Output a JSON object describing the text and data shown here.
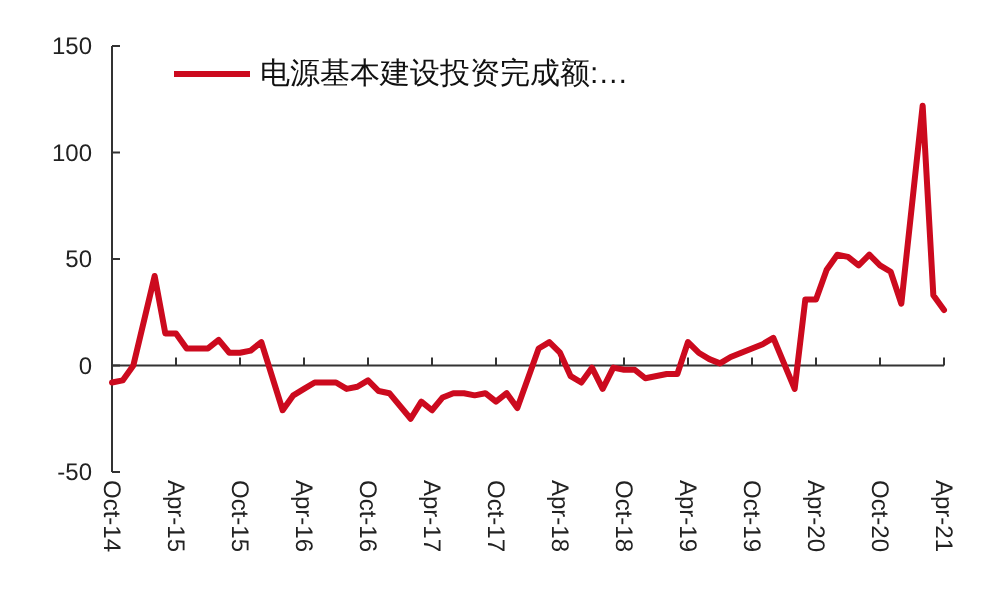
{
  "chart_data": {
    "type": "line",
    "x": [
      "2014-10",
      "2014-11",
      "2014-12",
      "2015-02",
      "2015-03",
      "2015-04",
      "2015-05",
      "2015-06",
      "2015-07",
      "2015-08",
      "2015-09",
      "2015-10",
      "2015-11",
      "2015-12",
      "2016-02",
      "2016-03",
      "2016-04",
      "2016-05",
      "2016-06",
      "2016-07",
      "2016-08",
      "2016-09",
      "2016-10",
      "2016-11",
      "2016-12",
      "2017-02",
      "2017-03",
      "2017-04",
      "2017-05",
      "2017-06",
      "2017-07",
      "2017-08",
      "2017-09",
      "2017-10",
      "2017-11",
      "2017-12",
      "2018-02",
      "2018-03",
      "2018-04",
      "2018-05",
      "2018-06",
      "2018-07",
      "2018-08",
      "2018-09",
      "2018-10",
      "2018-11",
      "2018-12",
      "2019-02",
      "2019-03",
      "2019-04",
      "2019-05",
      "2019-06",
      "2019-07",
      "2019-08",
      "2019-09",
      "2019-10",
      "2019-11",
      "2019-12",
      "2020-02",
      "2020-03",
      "2020-04",
      "2020-05",
      "2020-06",
      "2020-07",
      "2020-08",
      "2020-09",
      "2020-10",
      "2020-11",
      "2020-12",
      "2021-02",
      "2021-03",
      "2021-04"
    ],
    "series": [
      {
        "name": "电源基本建设投资完成额:…",
        "color": "#cc0a1e",
        "values": [
          -8,
          -7,
          0,
          42,
          15,
          15,
          8,
          8,
          8,
          12,
          6,
          6,
          7,
          11,
          -21,
          -14,
          -11,
          -8,
          -8,
          -8,
          -11,
          -10,
          -7,
          -12,
          -13,
          -25,
          -17,
          -21,
          -15,
          -13,
          -13,
          -14,
          -13,
          -17,
          -13,
          -20,
          8,
          11,
          6,
          -5,
          -8,
          -1,
          -11,
          -1,
          -2,
          -2,
          -6,
          -4,
          -4,
          11,
          6,
          3,
          1,
          4,
          6,
          8,
          10,
          13,
          -11,
          31,
          31,
          45,
          52,
          51,
          47,
          52,
          47,
          44,
          29,
          122,
          33,
          26
        ]
      }
    ],
    "xlim": [
      "2014-10",
      "2021-04"
    ],
    "xticks": [
      {
        "value": "2014-10",
        "label": "Oct-14"
      },
      {
        "value": "2015-04",
        "label": "Apr-15"
      },
      {
        "value": "2015-10",
        "label": "Oct-15"
      },
      {
        "value": "2016-04",
        "label": "Apr-16"
      },
      {
        "value": "2016-10",
        "label": "Oct-16"
      },
      {
        "value": "2017-04",
        "label": "Apr-17"
      },
      {
        "value": "2017-10",
        "label": "Oct-17"
      },
      {
        "value": "2018-04",
        "label": "Apr-18"
      },
      {
        "value": "2018-10",
        "label": "Oct-18"
      },
      {
        "value": "2019-04",
        "label": "Apr-19"
      },
      {
        "value": "2019-10",
        "label": "Oct-19"
      },
      {
        "value": "2020-04",
        "label": "Apr-20"
      },
      {
        "value": "2020-10",
        "label": "Oct-20"
      },
      {
        "value": "2021-04",
        "label": "Apr-21"
      }
    ],
    "ylim": [
      -50,
      150
    ],
    "yticks": [
      -50,
      0,
      50,
      100,
      150
    ],
    "legend": "top left",
    "marker": "none",
    "line_style": "solid"
  }
}
